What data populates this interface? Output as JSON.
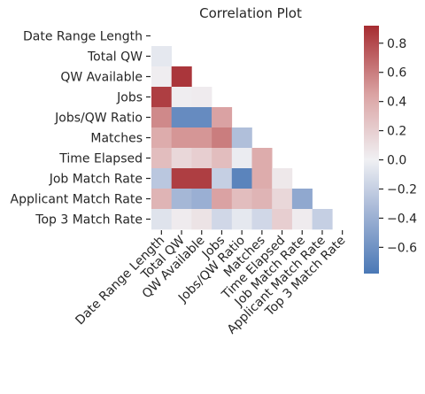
{
  "chart_data": {
    "type": "heatmap",
    "title": "Correlation Plot",
    "mask": "upper-triangle",
    "labels": [
      "Date Range Length",
      "Total QW",
      "QW Available",
      "Jobs",
      "Jobs/QW Ratio",
      "Matches",
      "Time Elapsed",
      "Job Match Rate",
      "Applicant Match Rate",
      "Top 3 Match Rate"
    ],
    "matrix": [
      [
        null,
        null,
        null,
        null,
        null,
        null,
        null,
        null,
        null,
        null
      ],
      [
        -0.05,
        null,
        null,
        null,
        null,
        null,
        null,
        null,
        null,
        null
      ],
      [
        0.02,
        0.88,
        null,
        null,
        null,
        null,
        null,
        null,
        null,
        null
      ],
      [
        0.85,
        0.02,
        0.03,
        null,
        null,
        null,
        null,
        null,
        null,
        null
      ],
      [
        0.55,
        -0.65,
        -0.65,
        0.45,
        null,
        null,
        null,
        null,
        null,
        null
      ],
      [
        0.4,
        0.5,
        0.5,
        0.6,
        -0.3,
        null,
        null,
        null,
        null,
        null
      ],
      [
        0.3,
        0.15,
        0.2,
        0.3,
        -0.02,
        0.4,
        null,
        null,
        null,
        null
      ],
      [
        -0.25,
        0.85,
        0.85,
        -0.2,
        -0.7,
        0.4,
        0.05,
        null,
        null,
        null
      ],
      [
        0.35,
        -0.35,
        -0.4,
        0.45,
        0.3,
        0.35,
        0.15,
        -0.45,
        null,
        null
      ],
      [
        -0.08,
        0.03,
        0.08,
        -0.15,
        -0.05,
        -0.15,
        0.2,
        0.03,
        -0.2,
        null
      ]
    ],
    "colormap": "vlag",
    "vmin": -0.78,
    "vmax": 0.92,
    "colorbar_ticks": [
      0.8,
      0.6,
      0.4,
      0.2,
      0.0,
      -0.2,
      -0.4,
      -0.6
    ],
    "colorbar_tick_labels": [
      "0.8",
      "0.6",
      "0.4",
      "0.2",
      "0.0",
      "−0.2",
      "−0.4",
      "−0.6"
    ],
    "colorbar_placement": "right",
    "grid": false
  }
}
